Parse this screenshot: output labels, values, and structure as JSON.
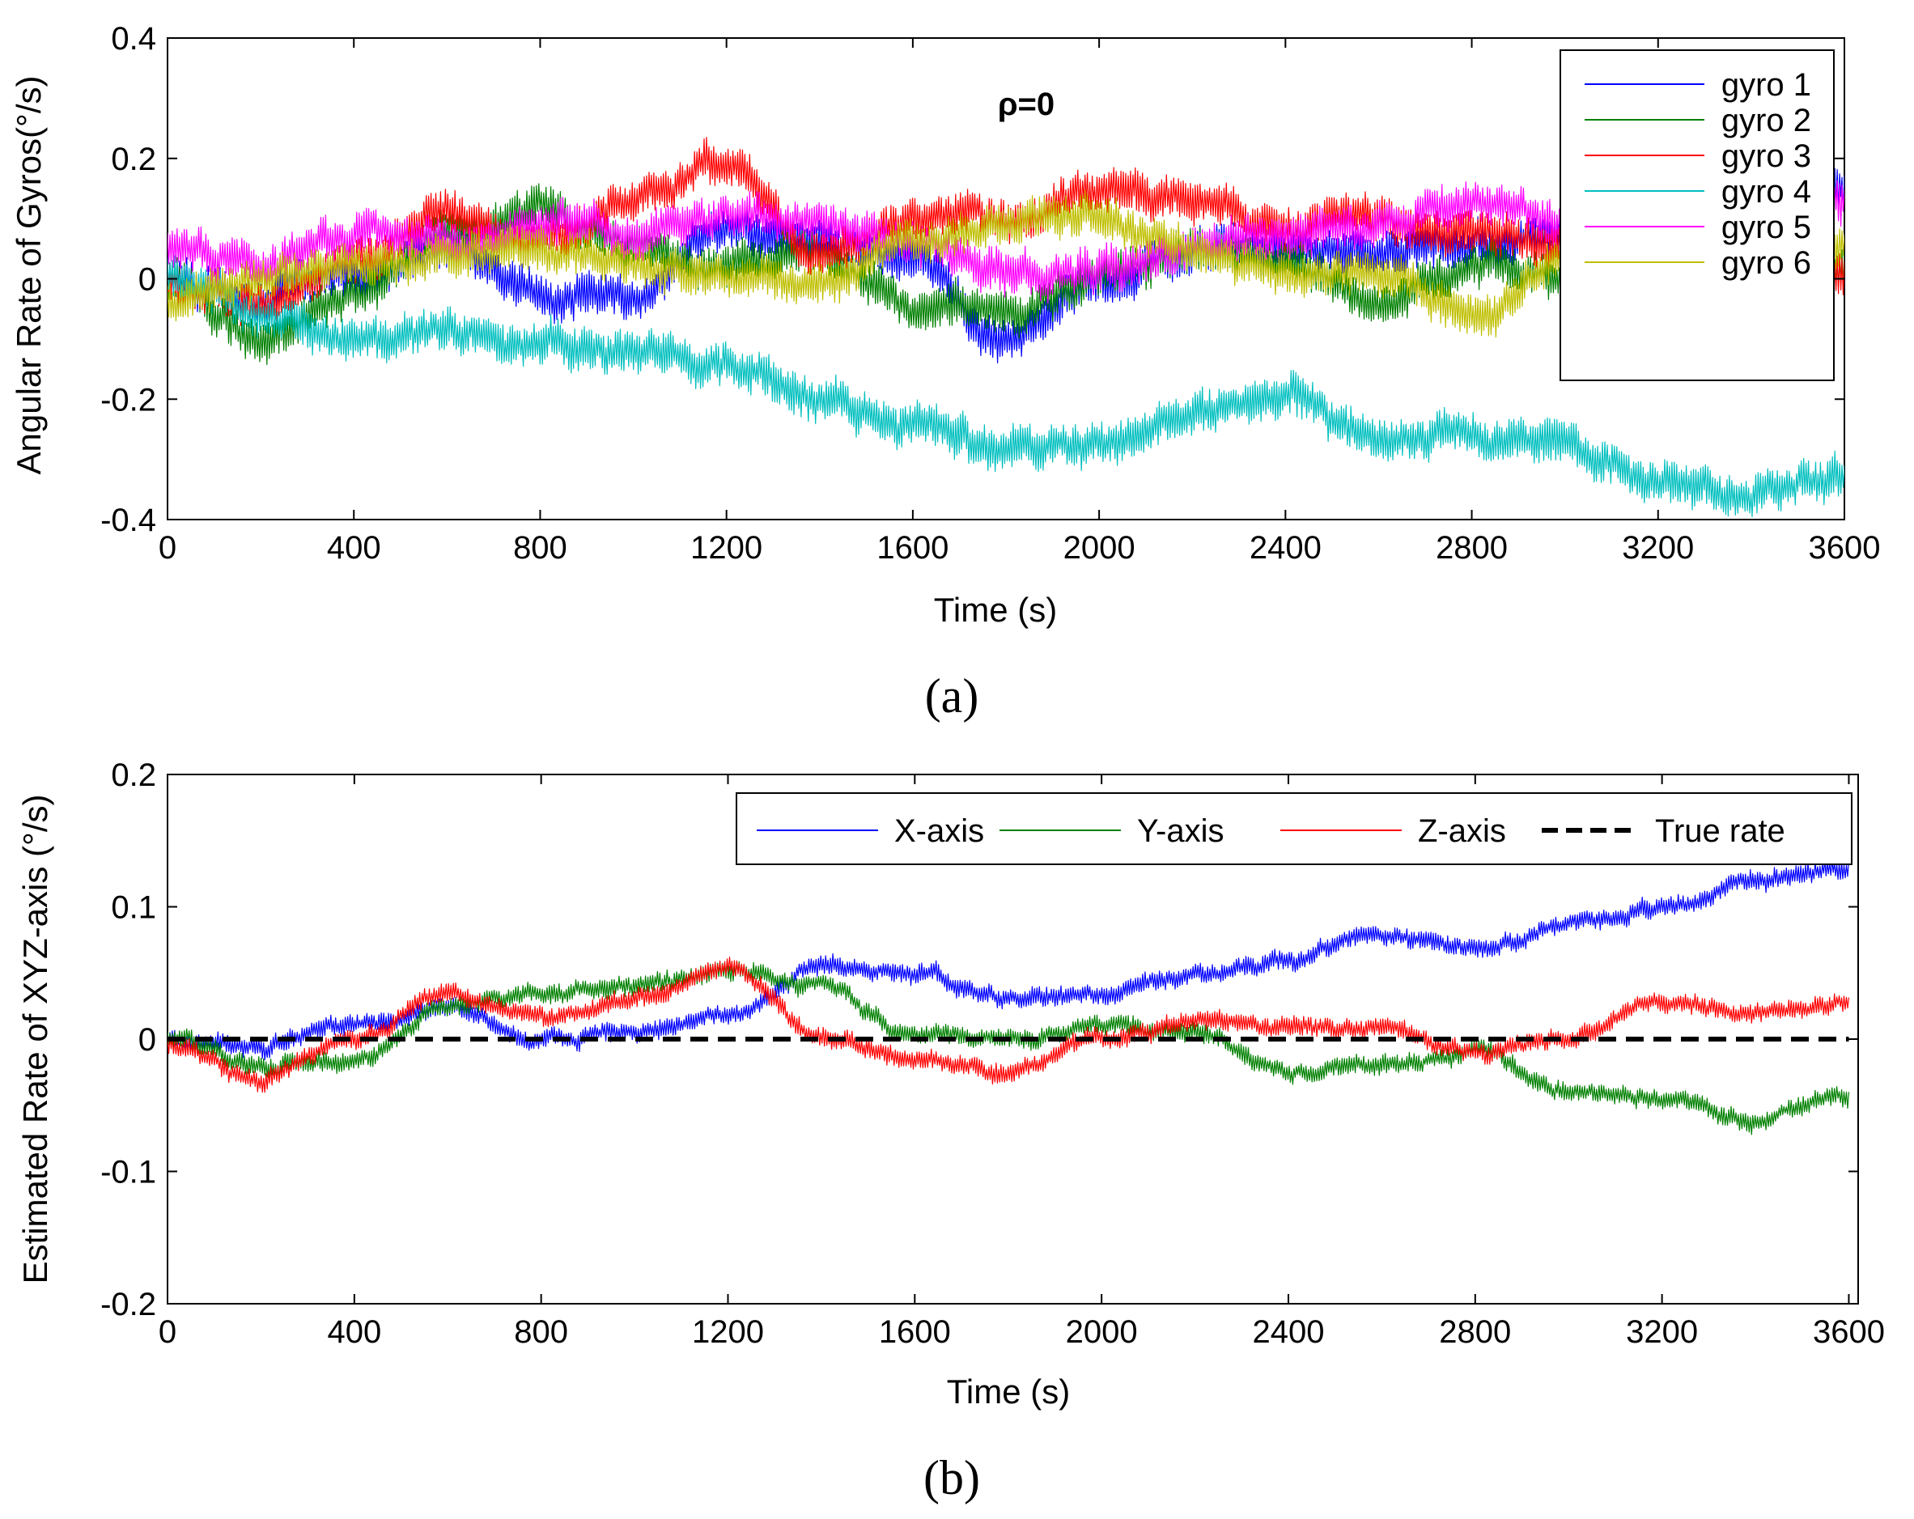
{
  "chart_data": [
    {
      "type": "line",
      "panel_label": "(a)",
      "annotation": "ρ=0",
      "xlabel": "Time (s)",
      "ylabel": "Angular Rate of Gyros(°/s)",
      "xlim": [
        0,
        3600
      ],
      "ylim": [
        -0.4,
        0.4
      ],
      "xticks": [
        "0",
        "400",
        "800",
        "1200",
        "1600",
        "2000",
        "2400",
        "2800",
        "3200",
        "3600"
      ],
      "yticks": [
        "0.4",
        "0.2",
        "0",
        "-0.2",
        "-0.4"
      ],
      "legend_position": "top-right",
      "grid": false,
      "x": [
        0,
        200,
        400,
        600,
        800,
        1000,
        1200,
        1400,
        1600,
        1800,
        2000,
        2200,
        2400,
        2600,
        2800,
        3000,
        3200,
        3400,
        3600
      ],
      "series": [
        {
          "name": "gyro 1",
          "color": "#0000ff",
          "values": [
            0.0,
            -0.03,
            0.01,
            0.05,
            -0.02,
            -0.04,
            0.08,
            0.06,
            0.03,
            -0.1,
            0.0,
            0.04,
            0.06,
            0.05,
            0.05,
            0.07,
            0.08,
            0.1,
            0.15
          ]
        },
        {
          "name": "gyro 2",
          "color": "#008000",
          "values": [
            0.0,
            -0.1,
            -0.02,
            0.08,
            0.12,
            0.05,
            0.02,
            0.04,
            -0.05,
            -0.06,
            0.0,
            0.05,
            0.03,
            -0.04,
            0.02,
            0.0,
            0.04,
            0.04,
            0.02
          ]
        },
        {
          "name": "gyro 3",
          "color": "#ff0000",
          "values": [
            0.0,
            -0.04,
            0.03,
            0.1,
            0.07,
            0.14,
            0.19,
            0.04,
            0.1,
            0.1,
            0.14,
            0.13,
            0.08,
            0.1,
            0.08,
            0.05,
            0.05,
            0.06,
            0.0
          ]
        },
        {
          "name": "gyro 4",
          "color": "#00bfbf",
          "values": [
            0.0,
            -0.06,
            -0.1,
            -0.09,
            -0.11,
            -0.13,
            -0.14,
            -0.2,
            -0.24,
            -0.28,
            -0.27,
            -0.22,
            -0.2,
            -0.26,
            -0.26,
            -0.28,
            -0.33,
            -0.36,
            -0.33
          ]
        },
        {
          "name": "gyro 5",
          "color": "#ff00ff",
          "values": [
            0.05,
            0.02,
            0.07,
            0.06,
            0.09,
            0.07,
            0.11,
            0.09,
            0.06,
            0.01,
            0.02,
            0.05,
            0.07,
            0.09,
            0.13,
            0.09,
            0.12,
            0.1,
            0.12
          ]
        },
        {
          "name": "gyro 6",
          "color": "#bfbf00",
          "values": [
            -0.03,
            0.0,
            0.02,
            0.04,
            0.05,
            0.02,
            0.0,
            -0.01,
            0.06,
            0.09,
            0.1,
            0.05,
            0.0,
            0.02,
            -0.06,
            0.03,
            0.04,
            0.03,
            0.05
          ]
        }
      ]
    },
    {
      "type": "line",
      "panel_label": "(b)",
      "xlabel": "Time (s)",
      "ylabel": "Estimated Rate of XYZ-axis (°/s)",
      "xlim": [
        0,
        3620
      ],
      "ylim": [
        -0.2,
        0.2
      ],
      "xticks": [
        "0",
        "400",
        "800",
        "1200",
        "1600",
        "2000",
        "2400",
        "2800",
        "3200",
        "3600"
      ],
      "yticks": [
        "0.2",
        "0.1",
        "0",
        "-0.1",
        "-0.2"
      ],
      "legend_position": "top-right",
      "grid": false,
      "x": [
        0,
        200,
        400,
        600,
        800,
        1000,
        1200,
        1400,
        1600,
        1800,
        2000,
        2200,
        2400,
        2600,
        2800,
        3000,
        3200,
        3400,
        3600
      ],
      "series": [
        {
          "name": "X-axis",
          "color": "#0000ff",
          "values": [
            0.0,
            -0.005,
            0.01,
            0.025,
            0.0,
            0.005,
            0.02,
            0.055,
            0.05,
            0.03,
            0.035,
            0.05,
            0.06,
            0.08,
            0.07,
            0.085,
            0.1,
            0.12,
            0.13
          ]
        },
        {
          "name": "Y-axis",
          "color": "#008000",
          "values": [
            0.0,
            -0.02,
            -0.015,
            0.025,
            0.035,
            0.04,
            0.05,
            0.04,
            0.005,
            0.0,
            0.01,
            0.005,
            -0.025,
            -0.02,
            -0.01,
            -0.04,
            -0.045,
            -0.06,
            -0.045
          ]
        },
        {
          "name": "Z-axis",
          "color": "#ff0000",
          "values": [
            -0.005,
            -0.03,
            0.0,
            0.035,
            0.015,
            0.03,
            0.055,
            0.0,
            -0.015,
            -0.025,
            0.0,
            0.015,
            0.01,
            0.01,
            -0.01,
            0.0,
            0.03,
            0.02,
            0.025
          ]
        },
        {
          "name": "True rate",
          "color": "#000000",
          "style": "dashed",
          "values": [
            0,
            0,
            0,
            0,
            0,
            0,
            0,
            0,
            0,
            0,
            0,
            0,
            0,
            0,
            0,
            0,
            0,
            0,
            0
          ]
        }
      ]
    }
  ]
}
